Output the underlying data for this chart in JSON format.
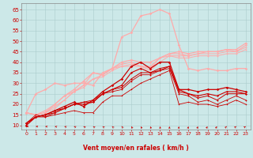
{
  "xlabel": "Vent moyen/en rafales ( km/h )",
  "bg_color": "#cce8e8",
  "grid_color": "#aacccc",
  "xlim": [
    -0.5,
    23.5
  ],
  "ylim": [
    8,
    68
  ],
  "yticks": [
    10,
    15,
    20,
    25,
    30,
    35,
    40,
    45,
    50,
    55,
    60,
    65
  ],
  "xticks": [
    0,
    1,
    2,
    3,
    4,
    5,
    6,
    7,
    8,
    9,
    10,
    11,
    12,
    13,
    14,
    15,
    16,
    17,
    18,
    19,
    20,
    21,
    22,
    23
  ],
  "series": [
    {
      "x": [
        0,
        1,
        2,
        3,
        4,
        5,
        6,
        7,
        8,
        9,
        10,
        11,
        12,
        13,
        14,
        15,
        16,
        17,
        18,
        19,
        20,
        21,
        22,
        23
      ],
      "y": [
        16,
        25,
        27,
        30,
        29,
        30,
        30,
        29,
        35,
        37,
        52,
        54,
        62,
        63,
        65,
        63,
        48,
        37,
        36,
        37,
        36,
        36,
        37,
        37
      ],
      "color": "#ffaaaa",
      "lw": 0.9,
      "marker": "D",
      "ms": 1.8
    },
    {
      "x": [
        0,
        1,
        2,
        3,
        4,
        5,
        6,
        7,
        8,
        9,
        10,
        11,
        12,
        13,
        14,
        15,
        16,
        17,
        18,
        19,
        20,
        21,
        22,
        23
      ],
      "y": [
        16,
        15,
        16,
        20,
        24,
        27,
        31,
        35,
        34,
        37,
        40,
        41,
        40,
        40,
        42,
        44,
        45,
        44,
        45,
        45,
        45,
        46,
        46,
        49
      ],
      "color": "#ffaaaa",
      "lw": 0.9,
      "marker": "D",
      "ms": 1.8
    },
    {
      "x": [
        0,
        1,
        2,
        3,
        4,
        5,
        6,
        7,
        8,
        9,
        10,
        11,
        12,
        13,
        14,
        15,
        16,
        17,
        18,
        19,
        20,
        21,
        22,
        23
      ],
      "y": [
        16,
        15,
        17,
        20,
        24,
        26,
        29,
        35,
        34,
        37,
        39,
        40,
        38,
        38,
        42,
        44,
        44,
        43,
        44,
        45,
        45,
        46,
        45,
        48
      ],
      "color": "#ffaaaa",
      "lw": 0.8,
      "marker": "D",
      "ms": 1.5
    },
    {
      "x": [
        0,
        1,
        2,
        3,
        4,
        5,
        6,
        7,
        8,
        9,
        10,
        11,
        12,
        13,
        14,
        15,
        16,
        17,
        18,
        19,
        20,
        21,
        22,
        23
      ],
      "y": [
        16,
        15,
        16,
        19,
        22,
        26,
        29,
        32,
        34,
        37,
        38,
        39,
        38,
        37,
        42,
        43,
        43,
        43,
        44,
        44,
        44,
        45,
        45,
        47
      ],
      "color": "#ffaaaa",
      "lw": 0.7,
      "marker": "D",
      "ms": 1.3
    },
    {
      "x": [
        0,
        1,
        2,
        3,
        4,
        5,
        6,
        7,
        8,
        9,
        10,
        11,
        12,
        13,
        14,
        15,
        16,
        17,
        18,
        19,
        20,
        21,
        22,
        23
      ],
      "y": [
        16,
        15,
        16,
        18,
        22,
        26,
        28,
        32,
        33,
        36,
        38,
        38,
        38,
        36,
        40,
        43,
        42,
        42,
        43,
        43,
        43,
        44,
        44,
        46
      ],
      "color": "#ffaaaa",
      "lw": 0.7,
      "marker": "D",
      "ms": 1.2
    },
    {
      "x": [
        0,
        1,
        2,
        3,
        4,
        5,
        6,
        7,
        8,
        9,
        10,
        11,
        12,
        13,
        14,
        15,
        16,
        17,
        18,
        19,
        20,
        21,
        22,
        23
      ],
      "y": [
        10,
        14,
        15,
        17,
        19,
        21,
        19,
        22,
        26,
        29,
        32,
        38,
        40,
        37,
        40,
        40,
        27,
        27,
        26,
        27,
        27,
        28,
        27,
        26
      ],
      "color": "#cc0000",
      "lw": 0.9,
      "marker": "D",
      "ms": 1.8
    },
    {
      "x": [
        0,
        1,
        2,
        3,
        4,
        5,
        6,
        7,
        8,
        9,
        10,
        11,
        12,
        13,
        14,
        15,
        16,
        17,
        18,
        19,
        20,
        21,
        22,
        23
      ],
      "y": [
        11,
        14,
        15,
        17,
        18,
        20,
        20,
        21,
        25,
        27,
        29,
        35,
        37,
        35,
        36,
        38,
        27,
        25,
        24,
        25,
        24,
        26,
        26,
        25
      ],
      "color": "#cc0000",
      "lw": 0.8,
      "marker": "D",
      "ms": 1.5
    },
    {
      "x": [
        0,
        1,
        2,
        3,
        4,
        5,
        6,
        7,
        8,
        9,
        10,
        11,
        12,
        13,
        14,
        15,
        16,
        17,
        18,
        19,
        20,
        21,
        22,
        23
      ],
      "y": [
        11,
        14,
        15,
        16,
        18,
        20,
        21,
        21,
        25,
        27,
        28,
        32,
        35,
        35,
        37,
        38,
        26,
        25,
        23,
        24,
        22,
        25,
        25,
        25
      ],
      "color": "#cc0000",
      "lw": 0.7,
      "marker": "D",
      "ms": 1.3
    },
    {
      "x": [
        0,
        1,
        2,
        3,
        4,
        5,
        6,
        7,
        8,
        9,
        10,
        11,
        12,
        13,
        14,
        15,
        16,
        17,
        18,
        19,
        20,
        21,
        22,
        23
      ],
      "y": [
        11,
        14,
        14,
        16,
        18,
        20,
        21,
        22,
        25,
        26,
        27,
        31,
        34,
        34,
        36,
        37,
        25,
        24,
        21,
        22,
        20,
        22,
        24,
        22
      ],
      "color": "#cc0000",
      "lw": 0.6,
      "marker": "D",
      "ms": 1.2
    },
    {
      "x": [
        0,
        1,
        2,
        3,
        4,
        5,
        6,
        7,
        8,
        9,
        10,
        11,
        12,
        13,
        14,
        15,
        16,
        17,
        18,
        19,
        20,
        21,
        22,
        23
      ],
      "y": [
        11,
        15,
        14,
        15,
        16,
        17,
        16,
        16,
        21,
        24,
        24,
        27,
        30,
        32,
        34,
        36,
        20,
        21,
        20,
        20,
        19,
        20,
        22,
        20
      ],
      "color": "#cc0000",
      "lw": 0.6,
      "marker": "D",
      "ms": 1.0
    }
  ]
}
